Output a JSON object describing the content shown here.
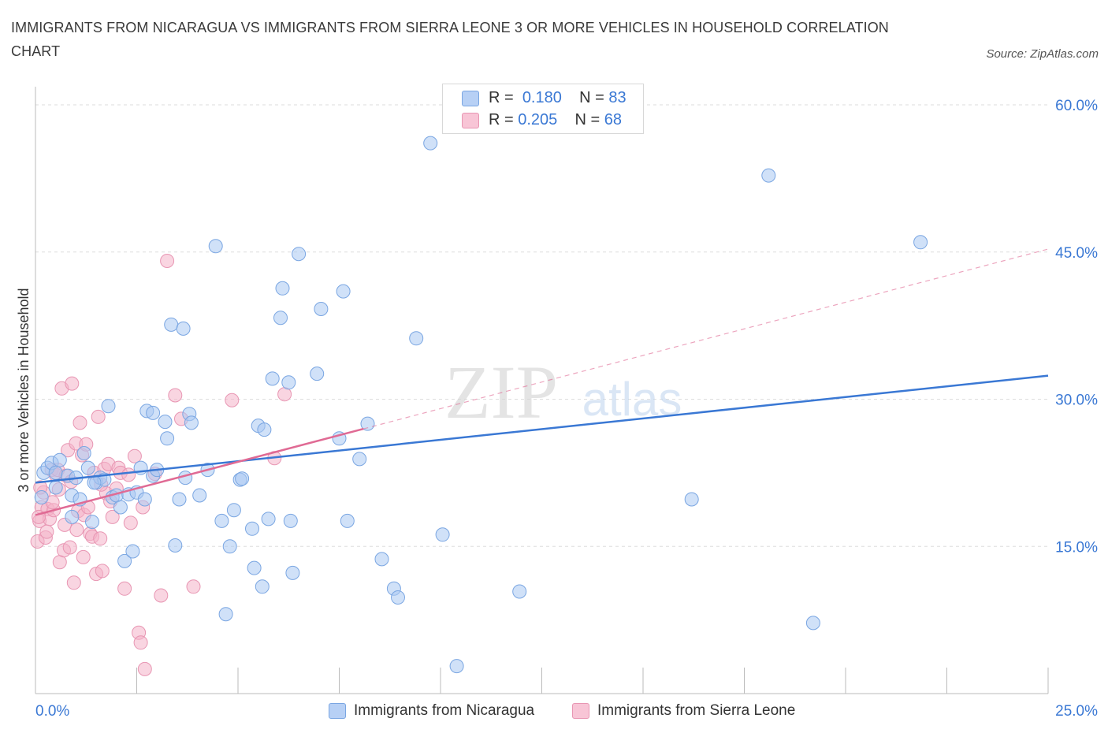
{
  "title": "IMMIGRANTS FROM NICARAGUA VS IMMIGRANTS FROM SIERRA LEONE 3 OR MORE VEHICLES IN HOUSEHOLD CORRELATION CHART",
  "source": "Source: ZipAtlas.com",
  "watermark": {
    "zip": "ZIP",
    "atlas": "atlas"
  },
  "colors": {
    "blue": "#3a78d4",
    "blue_fill": "#a9c8f2",
    "blue_swatch_fill": "#b7d0f5",
    "blue_swatch_border": "#7aa6e2",
    "pink": "#e06a94",
    "pink_fill": "#f4b3c8",
    "pink_swatch_fill": "#f8c5d6",
    "pink_swatch_border": "#e896b3",
    "grid": "#dddddd",
    "axis_label": "#3a78d4"
  },
  "legend_top": [
    {
      "r_label": "R =",
      "r_value": "0.180",
      "n_label": "N =",
      "n_value": "83",
      "series": "blue"
    },
    {
      "r_label": "R =",
      "r_value": "0.205",
      "n_label": "N =",
      "n_value": "68",
      "series": "pink"
    }
  ],
  "legend_bottom": [
    {
      "label": "Immigrants from Nicaragua",
      "series": "blue"
    },
    {
      "label": "Immigrants from Sierra Leone",
      "series": "pink"
    }
  ],
  "chart_data": {
    "type": "scatter",
    "title": "IMMIGRANTS FROM NICARAGUA VS IMMIGRANTS FROM SIERRA LEONE 3 OR MORE VEHICLES IN HOUSEHOLD CORRELATION CHART",
    "xlabel": "",
    "ylabel": "3 or more Vehicles in Household",
    "xlim": [
      0,
      25
    ],
    "ylim": [
      0,
      60
    ],
    "x_tick_labels": [
      "0.0%",
      "25.0%"
    ],
    "y_ticks": [
      15,
      30,
      45,
      60
    ],
    "y_tick_labels": [
      "15.0%",
      "30.0%",
      "45.0%",
      "60.0%"
    ],
    "grid": true,
    "series": [
      {
        "name": "Immigrants from Nicaragua",
        "color": "blue",
        "R": 0.18,
        "N": 83,
        "trend": {
          "x": [
            0,
            25
          ],
          "y": [
            21.5,
            32.4
          ],
          "style": "solid"
        },
        "points": [
          [
            0.2,
            22.5
          ],
          [
            0.3,
            23.0
          ],
          [
            0.4,
            23.5
          ],
          [
            0.5,
            22.5
          ],
          [
            0.5,
            21.0
          ],
          [
            0.6,
            23.8
          ],
          [
            0.8,
            22.2
          ],
          [
            0.9,
            20.2
          ],
          [
            0.9,
            18.0
          ],
          [
            1.0,
            22.0
          ],
          [
            1.1,
            19.8
          ],
          [
            1.2,
            24.5
          ],
          [
            1.3,
            23.0
          ],
          [
            1.4,
            17.5
          ],
          [
            1.5,
            21.5
          ],
          [
            1.6,
            22.0
          ],
          [
            1.7,
            21.8
          ],
          [
            1.8,
            29.3
          ],
          [
            1.9,
            20.0
          ],
          [
            2.0,
            20.2
          ],
          [
            2.1,
            19.0
          ],
          [
            2.2,
            13.5
          ],
          [
            2.3,
            20.3
          ],
          [
            2.4,
            14.5
          ],
          [
            2.5,
            20.5
          ],
          [
            2.6,
            23.0
          ],
          [
            2.7,
            19.8
          ],
          [
            2.75,
            28.8
          ],
          [
            2.9,
            22.2
          ],
          [
            2.9,
            28.6
          ],
          [
            3.0,
            22.8
          ],
          [
            3.2,
            27.7
          ],
          [
            3.25,
            26.0
          ],
          [
            3.35,
            37.6
          ],
          [
            3.45,
            15.1
          ],
          [
            3.55,
            19.8
          ],
          [
            3.65,
            37.2
          ],
          [
            3.7,
            22.0
          ],
          [
            3.8,
            28.5
          ],
          [
            3.85,
            27.6
          ],
          [
            4.05,
            20.2
          ],
          [
            4.25,
            22.8
          ],
          [
            4.45,
            45.6
          ],
          [
            4.6,
            17.6
          ],
          [
            4.7,
            8.1
          ],
          [
            4.8,
            15.0
          ],
          [
            4.9,
            18.7
          ],
          [
            5.05,
            21.8
          ],
          [
            5.1,
            21.9
          ],
          [
            5.35,
            16.8
          ],
          [
            5.4,
            12.8
          ],
          [
            5.5,
            27.3
          ],
          [
            5.6,
            10.9
          ],
          [
            5.65,
            26.9
          ],
          [
            5.75,
            17.8
          ],
          [
            5.85,
            32.1
          ],
          [
            6.05,
            38.3
          ],
          [
            6.1,
            41.3
          ],
          [
            6.25,
            31.7
          ],
          [
            6.3,
            17.6
          ],
          [
            6.35,
            12.3
          ],
          [
            6.5,
            44.8
          ],
          [
            6.95,
            32.6
          ],
          [
            7.05,
            39.2
          ],
          [
            7.5,
            26.0
          ],
          [
            7.6,
            41.0
          ],
          [
            7.7,
            17.6
          ],
          [
            8.0,
            23.9
          ],
          [
            8.2,
            27.5
          ],
          [
            8.55,
            13.7
          ],
          [
            8.85,
            10.7
          ],
          [
            8.95,
            9.8
          ],
          [
            9.4,
            36.2
          ],
          [
            9.75,
            56.1
          ],
          [
            10.05,
            16.2
          ],
          [
            10.4,
            2.8
          ],
          [
            11.95,
            10.4
          ],
          [
            16.2,
            19.8
          ],
          [
            18.1,
            52.8
          ],
          [
            19.2,
            7.2
          ],
          [
            21.85,
            46.0
          ],
          [
            0.15,
            20.0
          ],
          [
            1.45,
            21.5
          ]
        ]
      },
      {
        "name": "Immigrants from Sierra Leone",
        "color": "pink",
        "R": 0.205,
        "N": 68,
        "trend": {
          "x": [
            0,
            25
          ],
          "y": [
            18.2,
            45.3
          ],
          "style": "solid-then-dashed",
          "solid_until_x": 8.1
        },
        "points": [
          [
            0.05,
            15.5
          ],
          [
            0.1,
            17.6
          ],
          [
            0.15,
            19.0
          ],
          [
            0.2,
            20.5
          ],
          [
            0.25,
            15.9
          ],
          [
            0.3,
            18.8
          ],
          [
            0.35,
            17.8
          ],
          [
            0.4,
            22.8
          ],
          [
            0.45,
            18.7
          ],
          [
            0.5,
            22.3
          ],
          [
            0.55,
            22.8
          ],
          [
            0.6,
            13.4
          ],
          [
            0.65,
            31.1
          ],
          [
            0.7,
            14.6
          ],
          [
            0.75,
            22.2
          ],
          [
            0.8,
            24.8
          ],
          [
            0.85,
            14.9
          ],
          [
            0.9,
            31.6
          ],
          [
            0.95,
            11.3
          ],
          [
            1.0,
            25.5
          ],
          [
            1.05,
            18.6
          ],
          [
            1.1,
            27.6
          ],
          [
            1.15,
            24.3
          ],
          [
            1.2,
            18.2
          ],
          [
            1.25,
            25.4
          ],
          [
            1.3,
            19.0
          ],
          [
            1.35,
            16.3
          ],
          [
            1.4,
            16.0
          ],
          [
            1.45,
            22.5
          ],
          [
            1.5,
            12.2
          ],
          [
            1.55,
            28.2
          ],
          [
            1.6,
            15.8
          ],
          [
            1.65,
            12.5
          ],
          [
            1.7,
            22.9
          ],
          [
            1.75,
            20.4
          ],
          [
            1.8,
            23.4
          ],
          [
            1.85,
            19.6
          ],
          [
            1.9,
            18.0
          ],
          [
            2.0,
            20.9
          ],
          [
            2.05,
            23.0
          ],
          [
            2.1,
            22.5
          ],
          [
            2.2,
            10.7
          ],
          [
            2.3,
            22.3
          ],
          [
            2.45,
            24.2
          ],
          [
            2.55,
            6.2
          ],
          [
            2.6,
            5.2
          ],
          [
            2.65,
            19.0
          ],
          [
            2.7,
            2.5
          ],
          [
            2.95,
            22.4
          ],
          [
            3.1,
            10.0
          ],
          [
            3.25,
            44.1
          ],
          [
            3.45,
            30.4
          ],
          [
            3.6,
            28.0
          ],
          [
            3.9,
            10.9
          ],
          [
            4.85,
            29.9
          ],
          [
            5.9,
            24.0
          ],
          [
            6.15,
            30.5
          ],
          [
            0.08,
            18.0
          ],
          [
            0.12,
            21.0
          ],
          [
            0.28,
            16.5
          ],
          [
            0.42,
            19.5
          ],
          [
            0.58,
            20.8
          ],
          [
            0.72,
            17.2
          ],
          [
            0.88,
            21.6
          ],
          [
            1.02,
            16.7
          ],
          [
            1.18,
            13.9
          ],
          [
            1.62,
            21.3
          ],
          [
            2.35,
            17.4
          ]
        ]
      }
    ]
  }
}
